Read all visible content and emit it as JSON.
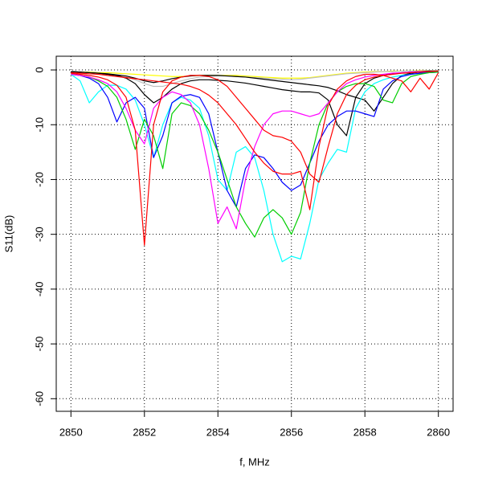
{
  "chart_data": {
    "type": "line",
    "x_label": "f, MHz",
    "y_label": "S11(dB)",
    "x": [
      2850,
      2850.25,
      2850.5,
      2850.75,
      2851,
      2851.25,
      2851.5,
      2851.75,
      2852,
      2852.25,
      2852.5,
      2852.75,
      2853,
      2853.25,
      2853.5,
      2853.75,
      2854,
      2854.25,
      2854.5,
      2854.75,
      2855,
      2855.25,
      2855.5,
      2855.75,
      2856,
      2856.25,
      2856.5,
      2856.75,
      2857,
      2857.25,
      2857.5,
      2857.75,
      2858,
      2858.25,
      2858.5,
      2858.75,
      2859,
      2859.25,
      2859.5,
      2859.75,
      2860
    ],
    "xlim": [
      2849.6,
      2860.4
    ],
    "xticks": [
      2850,
      2852,
      2854,
      2856,
      2858,
      2860
    ],
    "ylim": [
      -62.3,
      2.5
    ],
    "yticks": [
      0,
      -10,
      -20,
      -30,
      -40,
      -50,
      -60
    ],
    "grid": true,
    "series": [
      {
        "color": "#ffff00",
        "values": [
          -0.3,
          -0.4,
          -0.4,
          -0.5,
          -0.5,
          -0.6,
          -0.7,
          -0.8,
          -0.9,
          -1,
          -1.1,
          -1.2,
          -1.2,
          -1.1,
          -1,
          -1,
          -1,
          -1,
          -1,
          -1.1,
          -1.2,
          -1.3,
          -1.4,
          -1.5,
          -1.5,
          -1.5,
          -1.4,
          -1.2,
          -1,
          -0.8,
          -0.6,
          -0.5,
          -0.4,
          -0.3,
          -0.3,
          -0.2,
          -0.2,
          -0.2,
          -0.1,
          -0.1,
          -0.1
        ]
      },
      {
        "color": "#bebebe",
        "values": [
          -0.3,
          -0.4,
          -0.5,
          -0.6,
          -0.8,
          -1,
          -1.3,
          -1.8,
          -2.5,
          -3,
          -3,
          -2.5,
          -2,
          -1.6,
          -1.3,
          -1.2,
          -1.1,
          -1.1,
          -1.2,
          -1.3,
          -1.4,
          -1.5,
          -1.6,
          -1.7,
          -1.8,
          -1.7,
          -1.5,
          -1.3,
          -1.1,
          -0.9,
          -0.7,
          -0.6,
          -0.5,
          -0.4,
          -0.3,
          -0.3,
          -0.2,
          -0.2,
          -0.2,
          -0.1,
          -0.1
        ]
      },
      {
        "color": "#000000",
        "values": [
          -0.3,
          -0.4,
          -0.5,
          -0.6,
          -0.8,
          -1,
          -1.5,
          -2.5,
          -4.5,
          -6,
          -5,
          -3.5,
          -2.5,
          -2,
          -1.8,
          -1.8,
          -1.9,
          -2,
          -2.2,
          -2.4,
          -2.7,
          -3,
          -3.3,
          -3.6,
          -3.8,
          -4,
          -4,
          -4.2,
          -5.5,
          -10,
          -12,
          -5,
          -2.5,
          -1.5,
          -1,
          -0.7,
          -0.5,
          -0.4,
          -0.3,
          -0.2,
          -0.2
        ]
      },
      {
        "color": "#000000",
        "values": [
          -0.3,
          -0.4,
          -0.5,
          -0.6,
          -0.7,
          -0.9,
          -1.1,
          -1.5,
          -2,
          -2.3,
          -2,
          -1.6,
          -1.3,
          -1.1,
          -1,
          -1,
          -1,
          -1.1,
          -1.2,
          -1.3,
          -1.5,
          -1.7,
          -1.9,
          -2.1,
          -2.3,
          -2.5,
          -2.7,
          -2.9,
          -3.2,
          -3.8,
          -4.5,
          -5,
          -5.5,
          -7.5,
          -5,
          -2.5,
          -1,
          -0.6,
          -0.4,
          -0.3,
          -0.2
        ]
      },
      {
        "color": "#00ffff",
        "values": [
          -0.8,
          -2,
          -6,
          -4,
          -2.8,
          -2.8,
          -3.5,
          -5.5,
          -10,
          -16,
          -10,
          -6,
          -5,
          -5.5,
          -7,
          -12,
          -20,
          -22,
          -15,
          -14,
          -16,
          -22,
          -30,
          -35,
          -34,
          -34.5,
          -28,
          -20,
          -17,
          -14.5,
          -15,
          -7,
          -4,
          -2.5,
          -1.8,
          -1.3,
          -1,
          -0.8,
          -0.6,
          -0.5,
          -0.4
        ]
      },
      {
        "color": "#0000ff",
        "values": [
          -0.8,
          -1,
          -1.5,
          -2.5,
          -5,
          -9.5,
          -6,
          -5,
          -7,
          -16,
          -12,
          -6,
          -4.8,
          -4.5,
          -5,
          -8,
          -15,
          -22,
          -25,
          -18,
          -15.5,
          -16,
          -18,
          -20.5,
          -22,
          -21,
          -17,
          -13,
          -10,
          -8.5,
          -7.5,
          -7.5,
          -8,
          -8.5,
          -3.5,
          -2,
          -1.2,
          -0.8,
          -0.6,
          -0.5,
          -0.4
        ]
      },
      {
        "color": "#00cd00",
        "values": [
          -0.8,
          -1,
          -1.3,
          -2,
          -3,
          -5,
          -9,
          -14.5,
          -9,
          -12,
          -18,
          -8,
          -6,
          -6.5,
          -8,
          -11,
          -15,
          -20,
          -25,
          -28,
          -30.5,
          -27,
          -25.5,
          -27,
          -30,
          -26,
          -17,
          -10,
          -6,
          -4,
          -3,
          -2.5,
          -2.5,
          -3,
          -5.5,
          -6,
          -2.5,
          -1.2,
          -0.8,
          -0.5,
          -0.4
        ]
      },
      {
        "color": "#ff00ff",
        "values": [
          -0.8,
          -1,
          -1.3,
          -1.8,
          -2.5,
          -4,
          -7,
          -11,
          -13.5,
          -7,
          -5,
          -4,
          -4.5,
          -6,
          -10,
          -18,
          -28,
          -25,
          -29,
          -20,
          -14,
          -10,
          -8,
          -7.5,
          -7.5,
          -8,
          -8.5,
          -8,
          -6,
          -4,
          -2.5,
          -1.8,
          -1.3,
          -1,
          -0.8,
          -0.6,
          -0.5,
          -0.4,
          -0.3,
          -0.3,
          -0.2
        ]
      },
      {
        "color": "#ff0000",
        "values": [
          -0.6,
          -0.8,
          -1,
          -1.3,
          -1.8,
          -2.8,
          -5,
          -11,
          -32,
          -10,
          -4,
          -2,
          -1.3,
          -1,
          -1,
          -1.2,
          -1.8,
          -3,
          -5,
          -7,
          -9,
          -11,
          -12,
          -12.3,
          -13,
          -15,
          -19,
          -20.5,
          -14,
          -8,
          -4.5,
          -2.8,
          -1.8,
          -1.3,
          -1,
          -0.8,
          -0.6,
          -0.5,
          -0.4,
          -0.3,
          -0.2
        ]
      },
      {
        "color": "#ff0000",
        "values": [
          -0.5,
          -0.6,
          -0.7,
          -0.8,
          -1,
          -1.2,
          -1.4,
          -1.6,
          -1.8,
          -2,
          -2.2,
          -2.4,
          -2.6,
          -3,
          -3.6,
          -4.6,
          -6,
          -8,
          -10,
          -12.5,
          -15,
          -17,
          -18.5,
          -19,
          -19,
          -18.5,
          -25.5,
          -14,
          -6.5,
          -3.5,
          -2,
          -1.2,
          -0.8,
          -0.8,
          -1,
          -1.5,
          -2,
          -4,
          -1.5,
          -3.5,
          -0.5
        ]
      }
    ]
  }
}
